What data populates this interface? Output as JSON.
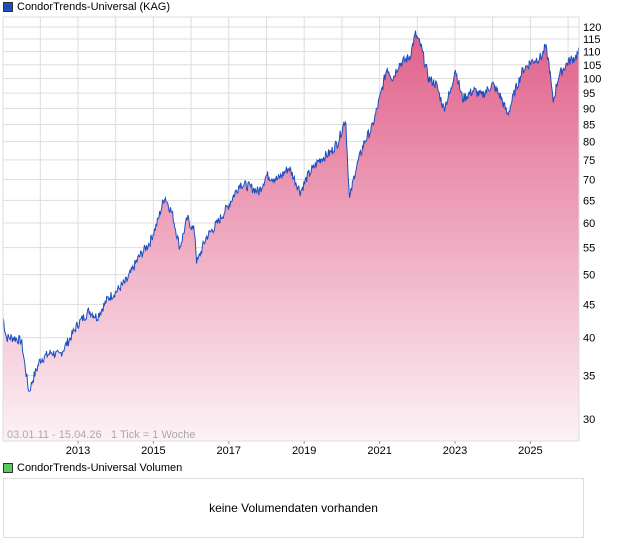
{
  "price_legend": {
    "label": "CondorTrends-Universal (KAG)",
    "color": "#1a4fc0"
  },
  "volume_legend": {
    "label": "CondorTrends-Universal Volumen",
    "color": "#5cc95c"
  },
  "volume_panel": {
    "message": "keine Volumendaten vorhanden"
  },
  "chart_info": {
    "range": "03.01.11 - 15.04.26",
    "tick": "1 Tick = 1 Woche"
  },
  "colors": {
    "line": "#1a4fc0",
    "fill_top": "#e0608a",
    "fill_bottom": "#fdf2f6",
    "grid": "#dddddd"
  },
  "chart_data": {
    "type": "area",
    "title": "CondorTrends-Universal (KAG)",
    "yscale": "log",
    "ylim": [
      27.5,
      126
    ],
    "xlim": [
      2011.01,
      2026.29
    ],
    "y_ticks": [
      30,
      35,
      40,
      45,
      50,
      55,
      60,
      65,
      70,
      75,
      80,
      85,
      90,
      95,
      100,
      105,
      110,
      115,
      120
    ],
    "x_ticks": [
      {
        "year": 2013,
        "label": "2013"
      },
      {
        "year": 2015,
        "label": "2015"
      },
      {
        "year": 2017,
        "label": "2017"
      },
      {
        "year": 2019,
        "label": "2019"
      },
      {
        "year": 2021,
        "label": "2021"
      },
      {
        "year": 2023,
        "label": "2023"
      },
      {
        "year": 2025,
        "label": "2025"
      }
    ],
    "grid": true,
    "series": [
      {
        "name": "CondorTrends-Universal",
        "points": [
          [
            2011.01,
            43
          ],
          [
            2011.1,
            40
          ],
          [
            2011.3,
            40
          ],
          [
            2011.5,
            39.5
          ],
          [
            2011.6,
            36
          ],
          [
            2011.7,
            33
          ],
          [
            2011.8,
            34.5
          ],
          [
            2012.0,
            37
          ],
          [
            2012.3,
            38
          ],
          [
            2012.5,
            37.5
          ],
          [
            2012.8,
            40
          ],
          [
            2013.0,
            42
          ],
          [
            2013.3,
            44
          ],
          [
            2013.5,
            43
          ],
          [
            2013.8,
            46
          ],
          [
            2014.0,
            47
          ],
          [
            2014.3,
            49
          ],
          [
            2014.6,
            53
          ],
          [
            2014.9,
            56
          ],
          [
            2015.1,
            60
          ],
          [
            2015.3,
            66
          ],
          [
            2015.5,
            62
          ],
          [
            2015.7,
            55
          ],
          [
            2015.9,
            61
          ],
          [
            2016.1,
            58
          ],
          [
            2016.15,
            52
          ],
          [
            2016.4,
            57
          ],
          [
            2016.7,
            60
          ],
          [
            2017.0,
            64
          ],
          [
            2017.3,
            69
          ],
          [
            2017.6,
            68
          ],
          [
            2017.8,
            67
          ],
          [
            2018.0,
            71
          ],
          [
            2018.3,
            70
          ],
          [
            2018.6,
            73
          ],
          [
            2018.9,
            67
          ],
          [
            2019.1,
            71
          ],
          [
            2019.4,
            75
          ],
          [
            2019.7,
            77
          ],
          [
            2019.9,
            80
          ],
          [
            2020.1,
            87
          ],
          [
            2020.2,
            65
          ],
          [
            2020.35,
            72
          ],
          [
            2020.6,
            80
          ],
          [
            2020.8,
            84
          ],
          [
            2021.0,
            93
          ],
          [
            2021.2,
            104
          ],
          [
            2021.35,
            100
          ],
          [
            2021.5,
            105
          ],
          [
            2021.8,
            108
          ],
          [
            2021.95,
            117
          ],
          [
            2022.1,
            112
          ],
          [
            2022.3,
            100
          ],
          [
            2022.5,
            98
          ],
          [
            2022.7,
            90
          ],
          [
            2022.9,
            96
          ],
          [
            2023.0,
            104
          ],
          [
            2023.2,
            93
          ],
          [
            2023.5,
            96
          ],
          [
            2023.7,
            94
          ],
          [
            2024.0,
            98
          ],
          [
            2024.2,
            94
          ],
          [
            2024.4,
            88
          ],
          [
            2024.6,
            96
          ],
          [
            2024.8,
            103
          ],
          [
            2025.0,
            106
          ],
          [
            2025.3,
            108
          ],
          [
            2025.4,
            112
          ],
          [
            2025.5,
            105
          ],
          [
            2025.6,
            92
          ],
          [
            2025.75,
            101
          ],
          [
            2026.0,
            106
          ],
          [
            2026.2,
            108
          ],
          [
            2026.29,
            110
          ]
        ]
      }
    ]
  }
}
